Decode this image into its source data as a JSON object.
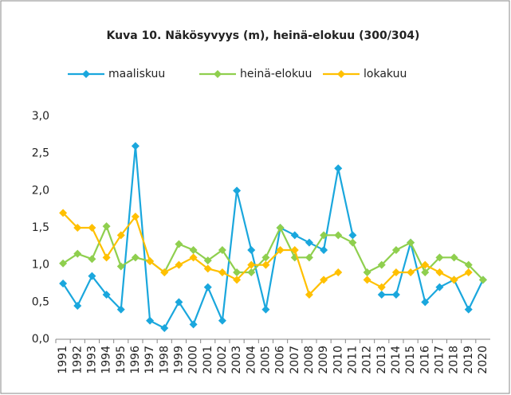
{
  "chart_data": {
    "type": "line",
    "title": "Kuva 10. Näkösyvyys (m), heinä-elokuu (300/304)",
    "categories": [
      "1991",
      "1992",
      "1993",
      "1994",
      "1995",
      "1996",
      "1997",
      "1998",
      "1999",
      "2000",
      "2001",
      "2002",
      "2003",
      "2004",
      "2005",
      "2006",
      "2007",
      "2008",
      "2009",
      "2010",
      "2011",
      "2012",
      "2013",
      "2014",
      "2015",
      "2016",
      "2017",
      "2018",
      "2019",
      "2020"
    ],
    "series": [
      {
        "name": "maaliskuu",
        "color": "#1aa7dd",
        "values": [
          0.75,
          0.45,
          0.85,
          0.6,
          0.4,
          2.6,
          0.25,
          0.15,
          0.5,
          0.2,
          0.7,
          0.25,
          2.0,
          1.2,
          0.4,
          1.5,
          1.4,
          1.3,
          1.2,
          2.3,
          1.4,
          null,
          0.6,
          0.6,
          1.3,
          0.5,
          0.7,
          0.8,
          0.4,
          0.8
        ]
      },
      {
        "name": "heinä-elokuu",
        "color": "#8fcf4e",
        "values": [
          1.02,
          1.15,
          1.08,
          1.52,
          0.98,
          1.1,
          1.05,
          0.9,
          1.28,
          1.2,
          1.06,
          1.2,
          0.9,
          0.9,
          1.1,
          1.5,
          1.1,
          1.1,
          1.4,
          1.4,
          1.3,
          0.9,
          1.0,
          1.2,
          1.3,
          0.9,
          1.1,
          1.1,
          1.0,
          0.8
        ]
      },
      {
        "name": "lokakuu",
        "color": "#ffc000",
        "values": [
          1.7,
          1.5,
          1.5,
          1.1,
          1.4,
          1.65,
          1.05,
          0.9,
          1.0,
          1.1,
          0.95,
          0.9,
          0.8,
          1.0,
          1.0,
          1.2,
          1.2,
          0.6,
          0.8,
          0.9,
          null,
          0.8,
          0.7,
          0.9,
          0.9,
          1.0,
          0.9,
          0.8,
          0.9,
          null
        ]
      }
    ],
    "ylim": [
      0,
      3
    ],
    "yticks": [
      {
        "value": 0,
        "label": "0,0"
      },
      {
        "value": 0.5,
        "label": "0,5"
      },
      {
        "value": 1,
        "label": "1,0"
      },
      {
        "value": 1.5,
        "label": "1,5"
      },
      {
        "value": 2,
        "label": "2,0"
      },
      {
        "value": 2.5,
        "label": "2,5"
      },
      {
        "value": 3,
        "label": "3,0"
      }
    ],
    "grid": false,
    "legend": "top"
  }
}
